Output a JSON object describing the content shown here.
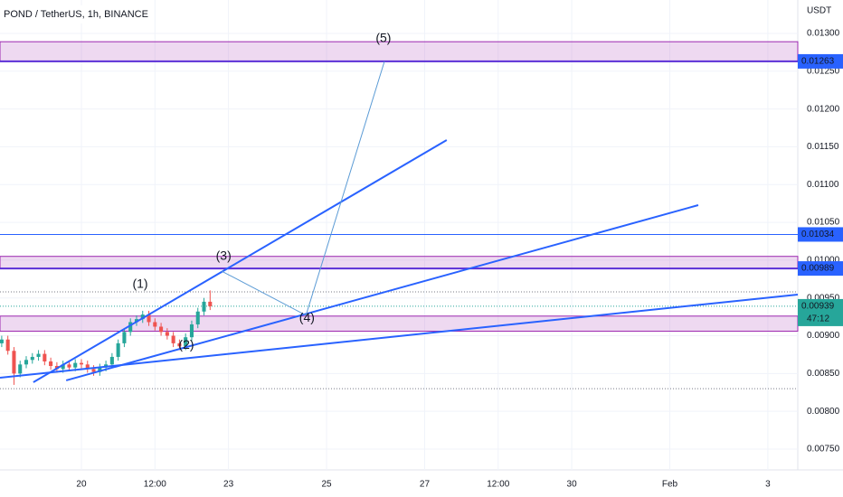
{
  "chart_data": {
    "type": "candlestick",
    "title": "POND / TetherUS, 1h, BINANCE",
    "currency": "USDT",
    "x": [
      -1.625,
      -1.5,
      -1.375,
      -1.25,
      -1.125,
      -1,
      -0.875,
      -0.75,
      -0.625,
      -0.5,
      -0.375,
      -0.25,
      -0.125,
      0,
      0.125,
      0.25,
      0.375,
      0.5,
      0.625,
      0.75,
      0.875,
      1,
      1.125,
      1.25,
      1.375,
      1.5,
      1.625,
      1.75,
      1.875,
      2,
      2.125,
      2.25,
      2.375,
      2.5,
      2.625
    ],
    "open": [
      0.0089,
      0.00895,
      0.0088,
      0.0085,
      0.00862,
      0.00868,
      0.00872,
      0.00876,
      0.00866,
      0.0086,
      0.00856,
      0.00862,
      0.00858,
      0.00864,
      0.00862,
      0.00856,
      0.00852,
      0.00858,
      0.00862,
      0.00872,
      0.0089,
      0.00905,
      0.00918,
      0.00922,
      0.00928,
      0.00918,
      0.00912,
      0.00905,
      0.009,
      0.0089,
      0.00886,
      0.00898,
      0.00915,
      0.00932,
      0.00945
    ],
    "high": [
      0.009,
      0.009,
      0.00885,
      0.00867,
      0.00873,
      0.00877,
      0.00881,
      0.00881,
      0.00871,
      0.00865,
      0.00867,
      0.00867,
      0.00869,
      0.00869,
      0.00867,
      0.00861,
      0.00863,
      0.00867,
      0.00877,
      0.00895,
      0.0091,
      0.00923,
      0.00927,
      0.00933,
      0.00933,
      0.00923,
      0.00917,
      0.0091,
      0.00905,
      0.00895,
      0.00903,
      0.0092,
      0.00937,
      0.0095,
      0.0096
    ],
    "low": [
      0.00885,
      0.00875,
      0.00835,
      0.00845,
      0.00857,
      0.00863,
      0.00867,
      0.00861,
      0.00855,
      0.00851,
      0.00851,
      0.00853,
      0.00853,
      0.00857,
      0.00851,
      0.00847,
      0.00847,
      0.00853,
      0.00857,
      0.00867,
      0.00885,
      0.009,
      0.00913,
      0.00917,
      0.00913,
      0.00907,
      0.009,
      0.00895,
      0.00885,
      0.00881,
      0.00881,
      0.00893,
      0.0091,
      0.00927,
      0.00934
    ],
    "close": [
      0.00895,
      0.0088,
      0.0085,
      0.00862,
      0.00868,
      0.00872,
      0.00876,
      0.00866,
      0.0086,
      0.00856,
      0.00862,
      0.00858,
      0.00864,
      0.00862,
      0.00856,
      0.00852,
      0.00858,
      0.00862,
      0.00872,
      0.0089,
      0.00905,
      0.00918,
      0.00922,
      0.00928,
      0.00918,
      0.00912,
      0.00905,
      0.009,
      0.0089,
      0.00886,
      0.00898,
      0.00915,
      0.00932,
      0.00945,
      0.00939
    ],
    "up_color": "#26a69a",
    "down_color": "#ef5350",
    "xlim": [
      -1.66,
      14.61
    ],
    "xticks": [
      {
        "value": 0,
        "label": "20"
      },
      {
        "value": 1.5,
        "label": "12:00"
      },
      {
        "value": 3,
        "label": "23"
      },
      {
        "value": 5,
        "label": "25"
      },
      {
        "value": 7,
        "label": "27"
      },
      {
        "value": 8.5,
        "label": "12:00"
      },
      {
        "value": 10,
        "label": "30"
      },
      {
        "value": 12,
        "label": "Feb"
      },
      {
        "value": 14,
        "label": "3"
      }
    ],
    "ylim": [
      0.007225,
      0.013442
    ],
    "yticks": [
      {
        "value": 0.013,
        "label": "0.01300"
      },
      {
        "value": 0.0125,
        "label": "0.01250"
      },
      {
        "value": 0.012,
        "label": "0.01200"
      },
      {
        "value": 0.0115,
        "label": "0.01150"
      },
      {
        "value": 0.011,
        "label": "0.01100"
      },
      {
        "value": 0.0105,
        "label": "0.01050"
      },
      {
        "value": 0.01,
        "label": "0.01000"
      },
      {
        "value": 0.0095,
        "label": "0.00950"
      },
      {
        "value": 0.009,
        "label": "0.00900"
      },
      {
        "value": 0.0085,
        "label": "0.00850"
      },
      {
        "value": 0.008,
        "label": "0.00800"
      },
      {
        "value": 0.0075,
        "label": "0.00750"
      }
    ],
    "zones": [
      {
        "from": 0.01263,
        "to": 0.01289
      },
      {
        "from": 0.00989,
        "to": 0.01005
      },
      {
        "from": 0.00906,
        "to": 0.00926
      }
    ],
    "levels": [
      {
        "value": 0.01263,
        "color": "#5b2fd6",
        "label_bg": "#2962ff"
      },
      {
        "value": 0.01034,
        "color": "#2962ff",
        "label_bg": "#2962ff"
      },
      {
        "value": 0.00989,
        "color": "#5b2fd6",
        "label_bg": "#2962ff"
      }
    ],
    "dotted_levels": [
      0.00958,
      0.0083
    ],
    "last_price": 0.00939,
    "countdown": "47:12",
    "last_color": "#26a69a",
    "trendlines": [
      {
        "x1": -0.98,
        "y1": 0.008385,
        "x2": 7.45,
        "y2": 0.011589
      },
      {
        "x1": -0.31,
        "y1": 0.008409,
        "x2": 12.58,
        "y2": 0.010728
      },
      {
        "x1": -1.66,
        "y1": 0.008444,
        "x2": 14.61,
        "y2": 0.009545
      }
    ],
    "wave_path": {
      "x": [
        2.86,
        4.58,
        6.18
      ],
      "y": [
        0.009855,
        0.00927,
        0.012629
      ]
    },
    "wave_labels": [
      {
        "text": "(1)",
        "x": 1.2,
        "y": 0.00968
      },
      {
        "text": "(2)",
        "x": 2.14,
        "y": 0.00887
      },
      {
        "text": "(3)",
        "x": 2.9,
        "y": 0.01005
      },
      {
        "text": "(4)",
        "x": 4.6,
        "y": 0.00923
      },
      {
        "text": "(5)",
        "x": 6.16,
        "y": 0.01293
      }
    ]
  }
}
